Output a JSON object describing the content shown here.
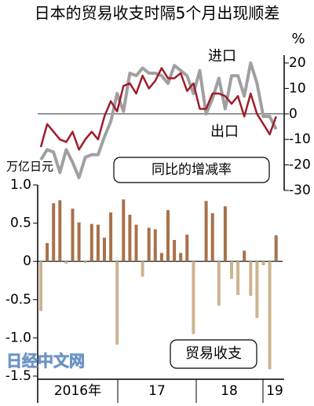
{
  "title": "日本的贸易收支时隔5个月出现顺差",
  "watermark": "日经中文网",
  "chart_data": [
    {
      "type": "line",
      "y_label": "%",
      "annotation": "同比的增减率",
      "ylim": [
        -30,
        20
      ],
      "yticks": [
        20,
        10,
        0,
        -10,
        -20,
        -30
      ],
      "series": [
        {
          "name": "进口",
          "color": "#a0a0a0",
          "values": [
            -18,
            -14,
            -15,
            -23,
            -14,
            -19,
            -25,
            -17,
            -16,
            -16,
            -9,
            -3,
            8,
            1,
            16,
            15,
            18,
            16,
            16,
            15,
            12,
            19,
            17,
            15,
            8,
            17,
            0,
            6,
            14,
            2,
            15,
            15,
            7,
            20,
            12,
            -1,
            -1,
            -6
          ]
        },
        {
          "name": "出口",
          "color": "#a01c2a",
          "values": [
            -13,
            -4,
            -7,
            -10,
            -11,
            -7,
            -14,
            -10,
            -7,
            -10,
            -1,
            5,
            1,
            11,
            12,
            8,
            15,
            10,
            13,
            18,
            14,
            14,
            16,
            9,
            12,
            2,
            2,
            8,
            8,
            7,
            4,
            7,
            -1,
            8,
            0,
            -4,
            -8,
            -1
          ]
        }
      ]
    },
    {
      "type": "bar",
      "y_label": "万亿日元",
      "annotation": "贸易收支",
      "categories": [
        null,
        null,
        null,
        null,
        null,
        "2016年",
        null,
        null,
        null,
        null,
        null,
        null,
        null,
        null,
        null,
        null,
        null,
        "17",
        null,
        null,
        null,
        null,
        null,
        null,
        null,
        null,
        null,
        null,
        null,
        "18",
        null,
        null,
        null,
        null,
        null,
        null,
        null,
        "19"
      ],
      "values": [
        -0.65,
        0.24,
        0.76,
        0.8,
        -0.03,
        0.69,
        0.51,
        -0.02,
        0.49,
        0.48,
        0.31,
        0.64,
        -1.09,
        0.81,
        0.61,
        0.48,
        -0.2,
        0.44,
        0.42,
        0.11,
        0.67,
        0.28,
        0.11,
        0.35,
        -0.95,
        0.0,
        0.79,
        0.63,
        -0.58,
        0.72,
        -0.23,
        -0.44,
        0.14,
        -0.45,
        -0.74,
        -0.05,
        -1.41,
        0.34
      ],
      "positive_color": "#a8714a",
      "negative_color": "#cdb48e",
      "ylim": [
        -1.5,
        1.0
      ],
      "yticks": [
        {
          "value": 1.0,
          "label": "1.0"
        },
        0.5,
        0,
        -0.5,
        {
          "value": -1.0,
          "label": "-1.0"
        },
        -1.5
      ]
    }
  ]
}
